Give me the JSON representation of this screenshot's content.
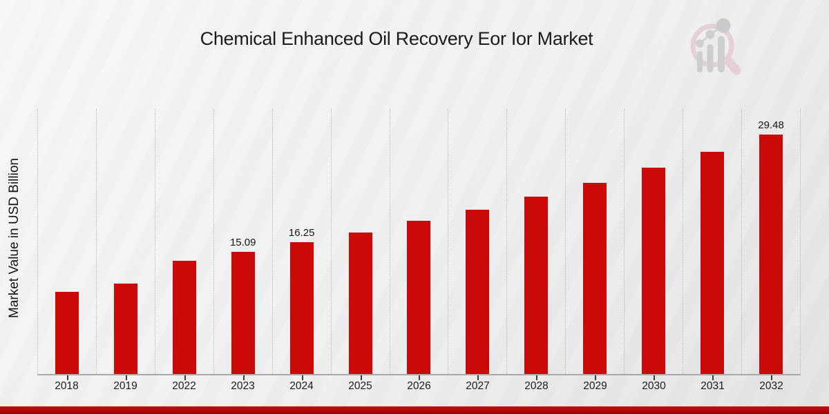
{
  "title": "Chemical Enhanced Oil Recovery Eor Ior Market",
  "y_axis_label": "Market Value in USD Billion",
  "chart_data": {
    "type": "bar",
    "title": "Chemical Enhanced Oil Recovery Eor Ior Market",
    "xlabel": "",
    "ylabel": "Market Value in USD Billion",
    "categories": [
      "2018",
      "2019",
      "2022",
      "2023",
      "2024",
      "2025",
      "2026",
      "2027",
      "2028",
      "2029",
      "2030",
      "2031",
      "2032"
    ],
    "values": [
      10.2,
      11.2,
      14.0,
      15.09,
      16.25,
      17.5,
      18.9,
      20.3,
      21.9,
      23.6,
      25.4,
      27.4,
      29.48
    ],
    "bar_labels": [
      "",
      "",
      "",
      "15.09",
      "16.25",
      "",
      "",
      "",
      "",
      "",
      "",
      "",
      "29.48"
    ],
    "ylim": [
      0,
      32.7
    ],
    "grid": "vertical dotted lines at category boundaries",
    "legend": "none",
    "bar_color": "#cc0909"
  },
  "colors": {
    "bar_fill": "#cc0909",
    "bar_outline": "#e9e9e9",
    "background_top_left": "#f7f7f7",
    "background_bottom_right": "#e3e3e5",
    "gridline": "#b7b7b7",
    "axis_line": "#a8a8a8",
    "text": "#1b1b1b",
    "footer_band": "#b30909",
    "logo_pink": "#e5c9cc",
    "logo_gray": "#c7c7c9"
  },
  "branding": {
    "logo_icon": "magnifier-bar-chart-watermark-icon"
  }
}
